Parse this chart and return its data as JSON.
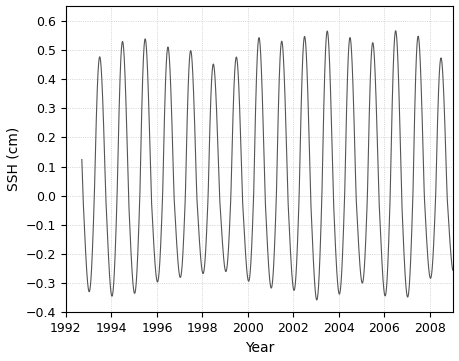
{
  "title": "",
  "xlabel": "Year",
  "ylabel": "SSH (cm)",
  "xlim": [
    1992,
    2009
  ],
  "ylim": [
    -0.4,
    0.65
  ],
  "yticks": [
    -0.4,
    -0.3,
    -0.2,
    -0.1,
    0.0,
    0.1,
    0.2,
    0.3,
    0.4,
    0.5,
    0.6
  ],
  "xticks": [
    1992,
    1994,
    1996,
    1998,
    2000,
    2002,
    2004,
    2006,
    2008
  ],
  "line_color": "#555555",
  "line_width": 0.8,
  "background_color": "#ffffff",
  "grid_color": "#bbbbbb",
  "grid_style": ":",
  "grid_linewidth": 0.5,
  "figsize": [
    4.59,
    3.61
  ],
  "dpi": 100,
  "font_size": 9,
  "label_font_size": 10,
  "tick_font_size": 9,
  "pos_peak_times": [
    1992.83,
    1993.92,
    1995.0,
    1996.0,
    1997.0,
    1998.0,
    1999.0,
    2000.0,
    2001.0,
    2002.0,
    2003.0,
    2004.0,
    2005.0,
    2006.0,
    2007.0,
    2008.0
  ],
  "pos_peak_vals": [
    0.45,
    0.49,
    0.56,
    0.51,
    0.505,
    0.485,
    0.41,
    0.54,
    0.54,
    0.515,
    0.575,
    0.55,
    0.53,
    0.515,
    0.615,
    0.47
  ],
  "neg_trough_times": [
    1993.42,
    1994.58,
    1995.58,
    1996.58,
    1997.58,
    1998.42,
    1999.42,
    2000.5,
    2001.5,
    2002.5,
    2003.5,
    2004.5,
    2005.5,
    2006.5,
    2007.5,
    2008.42
  ],
  "neg_trough_vals": [
    -0.325,
    -0.355,
    -0.3,
    -0.28,
    -0.27,
    -0.255,
    -0.255,
    -0.315,
    -0.31,
    -0.33,
    -0.375,
    -0.295,
    -0.295,
    -0.38,
    -0.31,
    -0.255
  ],
  "n_points": 8000,
  "start_year": 1992.7,
  "end_year": 2009.0,
  "phase_peak": 0.0,
  "semi_annual_amp": 0.025,
  "semi_annual_phase": 0.25
}
